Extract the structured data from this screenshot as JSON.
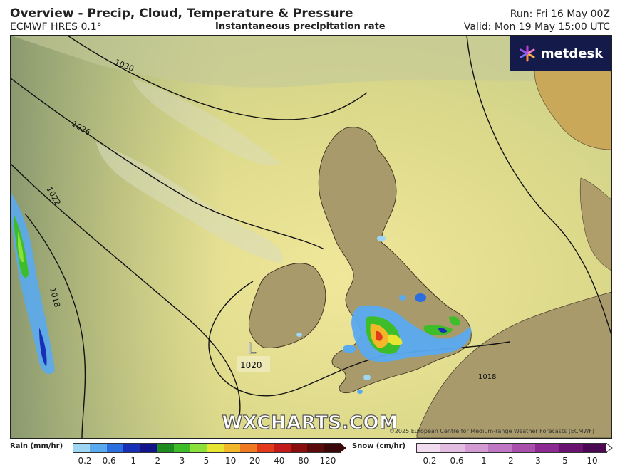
{
  "header": {
    "title": "Overview - Precip, Cloud, Temperature & Pressure",
    "model": "ECMWF HRES 0.1°",
    "layer": "Instantaneous precipitation rate",
    "run": "Run: Fri 16 May 00Z",
    "valid": "Valid: Mon 19 May 15:00 UTC"
  },
  "logo": {
    "text": "metdesk"
  },
  "map": {
    "isobars": [
      "1030",
      "1026",
      "1022",
      "1018",
      "1020",
      "1018"
    ],
    "low": {
      "symbol": "L",
      "pressure": "1020"
    },
    "watermark": "WXCHARTS.COM",
    "copyright": "©2025 European Centre for Medium-range Weather Forecasts (ECMWF)"
  },
  "legend": {
    "rain": {
      "title": "Rain (mm/hr)",
      "ticks": [
        "0.2",
        "0.6",
        "1",
        "2",
        "3",
        "5",
        "10",
        "20",
        "40",
        "80",
        "120"
      ],
      "colors": [
        "#9fd6f5",
        "#5aaaf0",
        "#2a6ee0",
        "#1a2fb8",
        "#14148a",
        "#1f8a1f",
        "#3dbd2a",
        "#8be03a",
        "#e6e632",
        "#f2b82a",
        "#f07a22",
        "#e23a1a",
        "#c01a1a",
        "#8a0d0d",
        "#5a0a0a",
        "#3a0808"
      ]
    },
    "snow": {
      "title": "Snow (cm/hr)",
      "ticks": [
        "0.2",
        "0.6",
        "1",
        "2",
        "3",
        "5",
        "10"
      ],
      "colors": [
        "#f2dcf0",
        "#e4bde3",
        "#d49ad4",
        "#c078c4",
        "#a850ac",
        "#8c2a92",
        "#6a1270",
        "#4a0852"
      ]
    }
  },
  "colors": {
    "logo_bg": "#141a4a",
    "sea": "#dfdc8a",
    "land": "#a89a6a"
  }
}
